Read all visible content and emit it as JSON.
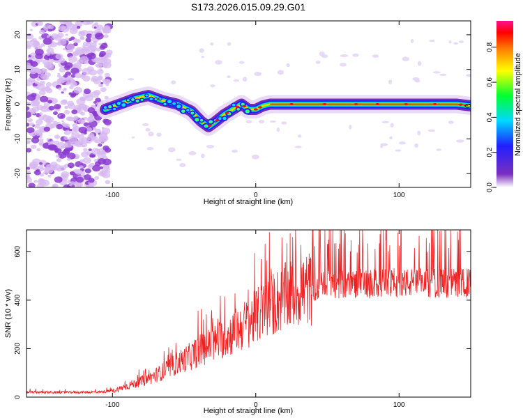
{
  "figure_title": "S173.2026.015.09.29.G01",
  "chart_data": [
    {
      "type": "heatmap",
      "title": "S173.2026.015.09.29.G01",
      "xlabel": "Height of straight line (km)",
      "ylabel": "Frequency (Hz)",
      "xlim": [
        -160,
        150
      ],
      "ylim": [
        -24,
        24
      ],
      "x_ticks": [
        -100,
        0,
        100
      ],
      "y_ticks": [
        -20,
        -10,
        0,
        10,
        20
      ],
      "ridge": {
        "x": [
          -105,
          -95,
          -85,
          -75,
          -65,
          -55,
          -45,
          -38,
          -33,
          -28,
          -22,
          -16,
          -10,
          -5,
          0,
          5,
          10,
          20,
          40,
          60,
          80,
          100,
          120,
          140,
          150
        ],
        "y": [
          -1.5,
          0,
          1.5,
          2.5,
          1,
          0,
          -2,
          -5,
          -6.5,
          -5,
          -3,
          -1.5,
          0,
          -1.5,
          -1.5,
          -0.5,
          0,
          0,
          0,
          0,
          0,
          0,
          0,
          0,
          -0.5
        ]
      },
      "colorbar": {
        "label": "Normalized spectral amplitude",
        "ticks": [
          0.0,
          0.2,
          0.4,
          0.6,
          0.8
        ],
        "range": [
          0,
          0.95
        ],
        "colors": [
          "#ffffff",
          "#6a1ba8",
          "#2020ff",
          "#00e0ff",
          "#00ff40",
          "#ffff00",
          "#ff8000",
          "#ff0000",
          "#ff1090"
        ]
      }
    },
    {
      "type": "line",
      "xlabel": "Height of straight line (km)",
      "ylabel": "SNR (10 * v/v)",
      "xlim": [
        -160,
        150
      ],
      "ylim": [
        0,
        690
      ],
      "x_ticks": [
        -100,
        0,
        100
      ],
      "y_ticks": [
        0,
        200,
        400,
        600
      ],
      "series": [
        {
          "name": "SNR",
          "color": "#ee2222",
          "x": [
            -160,
            -150,
            -140,
            -130,
            -120,
            -110,
            -100,
            -95,
            -90,
            -85,
            -80,
            -75,
            -70,
            -65,
            -60,
            -55,
            -50,
            -45,
            -40,
            -35,
            -30,
            -25,
            -20,
            -15,
            -10,
            -5,
            0,
            5,
            10,
            15,
            20,
            25,
            30,
            35,
            40,
            50,
            60,
            70,
            80,
            90,
            100,
            110,
            120,
            130,
            140,
            150
          ],
          "values": [
            20,
            20,
            19,
            20,
            20,
            21,
            25,
            35,
            45,
            55,
            65,
            75,
            90,
            105,
            120,
            140,
            155,
            170,
            190,
            205,
            220,
            235,
            250,
            270,
            290,
            310,
            330,
            355,
            375,
            395,
            410,
            425,
            440,
            445,
            450,
            460,
            465,
            470,
            468,
            470,
            472,
            470,
            472,
            470,
            472,
            470
          ]
        }
      ]
    }
  ]
}
